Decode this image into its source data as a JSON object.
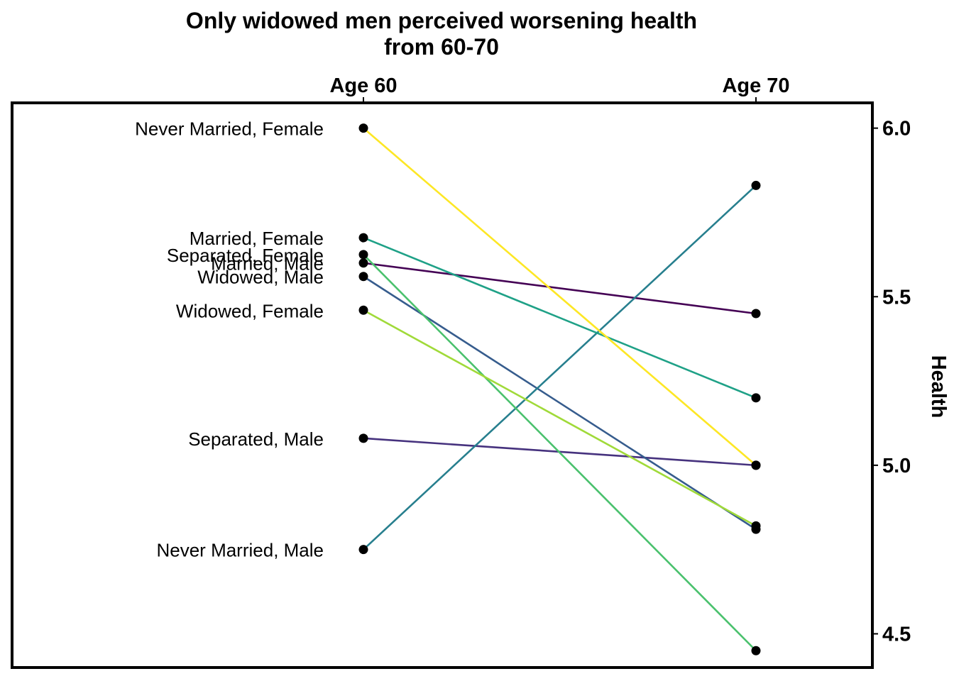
{
  "chart_data": {
    "type": "line",
    "title_lines": [
      "Only widowed men perceived worsening health",
      "from 60-70"
    ],
    "x_categories": [
      "Age 60",
      "Age 70"
    ],
    "ylabel": "Health",
    "ylim": [
      4.4,
      6.075
    ],
    "y_ticks": [
      4.5,
      5.0,
      5.5,
      6.0
    ],
    "y_tick_labels": [
      "4.5",
      "5.0",
      "5.5",
      "6.0"
    ],
    "grid": false,
    "series": [
      {
        "name": "Married, Male",
        "values": [
          5.6,
          5.45
        ],
        "color": "#440154"
      },
      {
        "name": "Separated, Male",
        "values": [
          5.08,
          5.0
        ],
        "color": "#46327e"
      },
      {
        "name": "Widowed, Male",
        "values": [
          5.56,
          4.81
        ],
        "color": "#365c8d"
      },
      {
        "name": "Never Married, Male",
        "values": [
          4.75,
          5.83
        ],
        "color": "#277f8e"
      },
      {
        "name": "Married, Female",
        "values": [
          5.675,
          5.2
        ],
        "color": "#1fa187"
      },
      {
        "name": "Separated, Female",
        "values": [
          5.625,
          4.45
        ],
        "color": "#4ac16d"
      },
      {
        "name": "Widowed, Female",
        "values": [
          5.46,
          4.82
        ],
        "color": "#a0da39"
      },
      {
        "name": "Never Married, Female",
        "values": [
          6.0,
          5.0
        ],
        "color": "#fde725"
      }
    ]
  }
}
